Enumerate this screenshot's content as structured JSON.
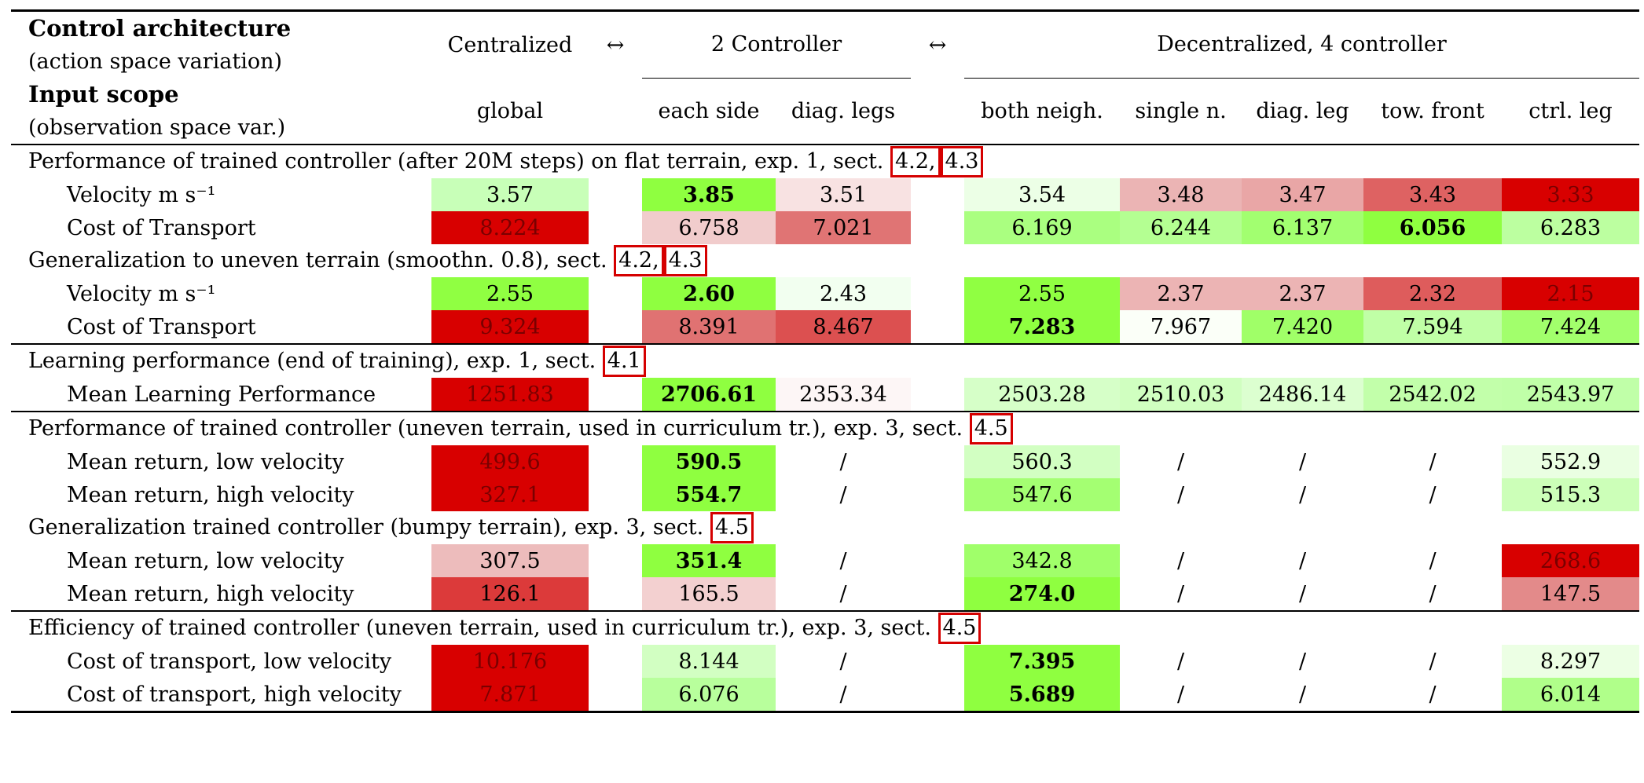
{
  "header": {
    "control_title": "Control architecture",
    "control_sub": "(action space variation)",
    "input_title": "Input scope",
    "input_sub": "(observation space var.)",
    "arrow": "↔",
    "groups": [
      "Centralized",
      "2 Controller",
      "Decentralized, 4 controller"
    ],
    "columns": [
      "global",
      "each side",
      "diag. legs",
      "both neigh.",
      "single n.",
      "diag. leg",
      "tow. front",
      "ctrl. leg"
    ]
  },
  "sections": [
    {
      "title_before": "Performance of trained controller (after 20M steps) on flat terrain, exp. 1, sect.",
      "refs": [
        "4.2,",
        "4.3"
      ],
      "rows": [
        {
          "label": "Velocity m s⁻¹",
          "cells": [
            {
              "v": "3.57",
              "bg": "#c8ffb8"
            },
            {
              "v": "3.85",
              "bg": "#8fff40",
              "bold": true
            },
            {
              "v": "3.51",
              "bg": "#f8e2e2"
            },
            {
              "v": "3.54",
              "bg": "#ecffe6"
            },
            {
              "v": "3.48",
              "bg": "#ebb4b4"
            },
            {
              "v": "3.47",
              "bg": "#e9a6a6"
            },
            {
              "v": "3.43",
              "bg": "#de6262"
            },
            {
              "v": "3.33",
              "bg": "#d80000",
              "dark": true
            }
          ]
        },
        {
          "label": "Cost of Transport",
          "cells": [
            {
              "v": "8.224",
              "bg": "#d80000",
              "dark": true
            },
            {
              "v": "6.758",
              "bg": "#f1cccc"
            },
            {
              "v": "7.021",
              "bg": "#e07474"
            },
            {
              "v": "6.169",
              "bg": "#aaff80"
            },
            {
              "v": "6.244",
              "bg": "#b4ff92"
            },
            {
              "v": "6.137",
              "bg": "#a2ff70"
            },
            {
              "v": "6.056",
              "bg": "#8fff40",
              "bold": true
            },
            {
              "v": "6.283",
              "bg": "#bcffa0"
            }
          ]
        }
      ]
    },
    {
      "title_before": "Generalization to uneven terrain (smoothn. 0.8), sect.",
      "refs": [
        "4.2,",
        "4.3"
      ],
      "rows": [
        {
          "label": "Velocity m s⁻¹",
          "cells": [
            {
              "v": "2.55",
              "bg": "#90ff42"
            },
            {
              "v": "2.60",
              "bg": "#8fff40",
              "bold": true
            },
            {
              "v": "2.43",
              "bg": "#f2fff0"
            },
            {
              "v": "2.55",
              "bg": "#90ff42"
            },
            {
              "v": "2.37",
              "bg": "#ecb4b4"
            },
            {
              "v": "2.37",
              "bg": "#ecb4b4"
            },
            {
              "v": "2.32",
              "bg": "#de5c5c"
            },
            {
              "v": "2.15",
              "bg": "#d80000",
              "dark": true
            }
          ]
        },
        {
          "label": "Cost of Transport",
          "cells": [
            {
              "v": "9.324",
              "bg": "#d80000",
              "dark": true
            },
            {
              "v": "8.391",
              "bg": "#e07272"
            },
            {
              "v": "8.467",
              "bg": "#dc5050"
            },
            {
              "v": "7.283",
              "bg": "#8fff40",
              "bold": true
            },
            {
              "v": "7.967",
              "bg": "#fbfff8"
            },
            {
              "v": "7.420",
              "bg": "#a0ff68"
            },
            {
              "v": "7.594",
              "bg": "#c0ffa6"
            },
            {
              "v": "7.424",
              "bg": "#a2ff6c"
            }
          ]
        }
      ]
    },
    {
      "title_before": "Learning performance (end of training), exp. 1, sect.",
      "refs": [
        "4.1"
      ],
      "divider": true,
      "rows": [
        {
          "label": "Mean Learning Performance",
          "cells": [
            {
              "v": "1251.83",
              "bg": "#d80000",
              "dark": true
            },
            {
              "v": "2706.61",
              "bg": "#8fff40",
              "bold": true
            },
            {
              "v": "2353.34",
              "bg": "#fdf6f6"
            },
            {
              "v": "2503.28",
              "bg": "#d6ffc8"
            },
            {
              "v": "2510.03",
              "bg": "#d0ffc0"
            },
            {
              "v": "2486.14",
              "bg": "#dcffd0"
            },
            {
              "v": "2542.02",
              "bg": "#c2ffaa"
            },
            {
              "v": "2543.97",
              "bg": "#c0ffa8"
            }
          ]
        }
      ]
    },
    {
      "title_before": "Performance of trained controller (uneven terrain, used in curriculum tr.), exp. 3, sect.",
      "refs": [
        "4.5"
      ],
      "divider": true,
      "rows": [
        {
          "label": "Mean return, low velocity",
          "cells": [
            {
              "v": "499.6",
              "bg": "#d80000",
              "dark": true
            },
            {
              "v": "590.5",
              "bg": "#8fff40",
              "bold": true
            },
            {
              "v": "/",
              "bg": ""
            },
            {
              "v": "560.3",
              "bg": "#d2ffc2"
            },
            {
              "v": "/",
              "bg": ""
            },
            {
              "v": "/",
              "bg": ""
            },
            {
              "v": "/",
              "bg": ""
            },
            {
              "v": "552.9",
              "bg": "#eaffe2"
            }
          ]
        },
        {
          "label": "Mean return, high velocity",
          "cells": [
            {
              "v": "327.1",
              "bg": "#d80000",
              "dark": true
            },
            {
              "v": "554.7",
              "bg": "#8fff40",
              "bold": true
            },
            {
              "v": "/",
              "bg": ""
            },
            {
              "v": "547.6",
              "bg": "#a4ff72"
            },
            {
              "v": "/",
              "bg": ""
            },
            {
              "v": "/",
              "bg": ""
            },
            {
              "v": "/",
              "bg": ""
            },
            {
              "v": "515.3",
              "bg": "#ccffb8"
            }
          ]
        }
      ]
    },
    {
      "title_before": "Generalization trained controller (bumpy terrain), exp. 3, sect.",
      "refs": [
        "4.5"
      ],
      "rows": [
        {
          "label": "Mean return, low velocity",
          "cells": [
            {
              "v": "307.5",
              "bg": "#edbcbc"
            },
            {
              "v": "351.4",
              "bg": "#8fff40",
              "bold": true
            },
            {
              "v": "/",
              "bg": ""
            },
            {
              "v": "342.8",
              "bg": "#a0ff6a"
            },
            {
              "v": "/",
              "bg": ""
            },
            {
              "v": "/",
              "bg": ""
            },
            {
              "v": "/",
              "bg": ""
            },
            {
              "v": "268.6",
              "bg": "#d80000",
              "dark": true
            }
          ]
        },
        {
          "label": "Mean return, high velocity",
          "cells": [
            {
              "v": "126.1",
              "bg": "#dc3a3a"
            },
            {
              "v": "165.5",
              "bg": "#f3d0d0"
            },
            {
              "v": "/",
              "bg": ""
            },
            {
              "v": "274.0",
              "bg": "#8fff40",
              "bold": true
            },
            {
              "v": "/",
              "bg": ""
            },
            {
              "v": "/",
              "bg": ""
            },
            {
              "v": "/",
              "bg": ""
            },
            {
              "v": "147.5",
              "bg": "#e38a8a"
            }
          ]
        }
      ]
    },
    {
      "title_before": "Efficiency of trained controller (uneven terrain, used in curriculum tr.), exp. 3, sect.",
      "refs": [
        "4.5"
      ],
      "divider": true,
      "rows": [
        {
          "label": "Cost of transport, low velocity",
          "cells": [
            {
              "v": "10.176",
              "bg": "#d80000",
              "dark": true
            },
            {
              "v": "8.144",
              "bg": "#d2ffc2"
            },
            {
              "v": "/",
              "bg": ""
            },
            {
              "v": "7.395",
              "bg": "#8fff40",
              "bold": true
            },
            {
              "v": "/",
              "bg": ""
            },
            {
              "v": "/",
              "bg": ""
            },
            {
              "v": "/",
              "bg": ""
            },
            {
              "v": "8.297",
              "bg": "#ecffe4"
            }
          ]
        },
        {
          "label": "Cost of transport, high velocity",
          "cells": [
            {
              "v": "7.871",
              "bg": "#d80000",
              "dark": true
            },
            {
              "v": "6.076",
              "bg": "#b8ff9c"
            },
            {
              "v": "/",
              "bg": ""
            },
            {
              "v": "5.689",
              "bg": "#8fff40",
              "bold": true
            },
            {
              "v": "/",
              "bg": ""
            },
            {
              "v": "/",
              "bg": ""
            },
            {
              "v": "/",
              "bg": ""
            },
            {
              "v": "6.014",
              "bg": "#b0ff8a"
            }
          ]
        }
      ]
    }
  ]
}
